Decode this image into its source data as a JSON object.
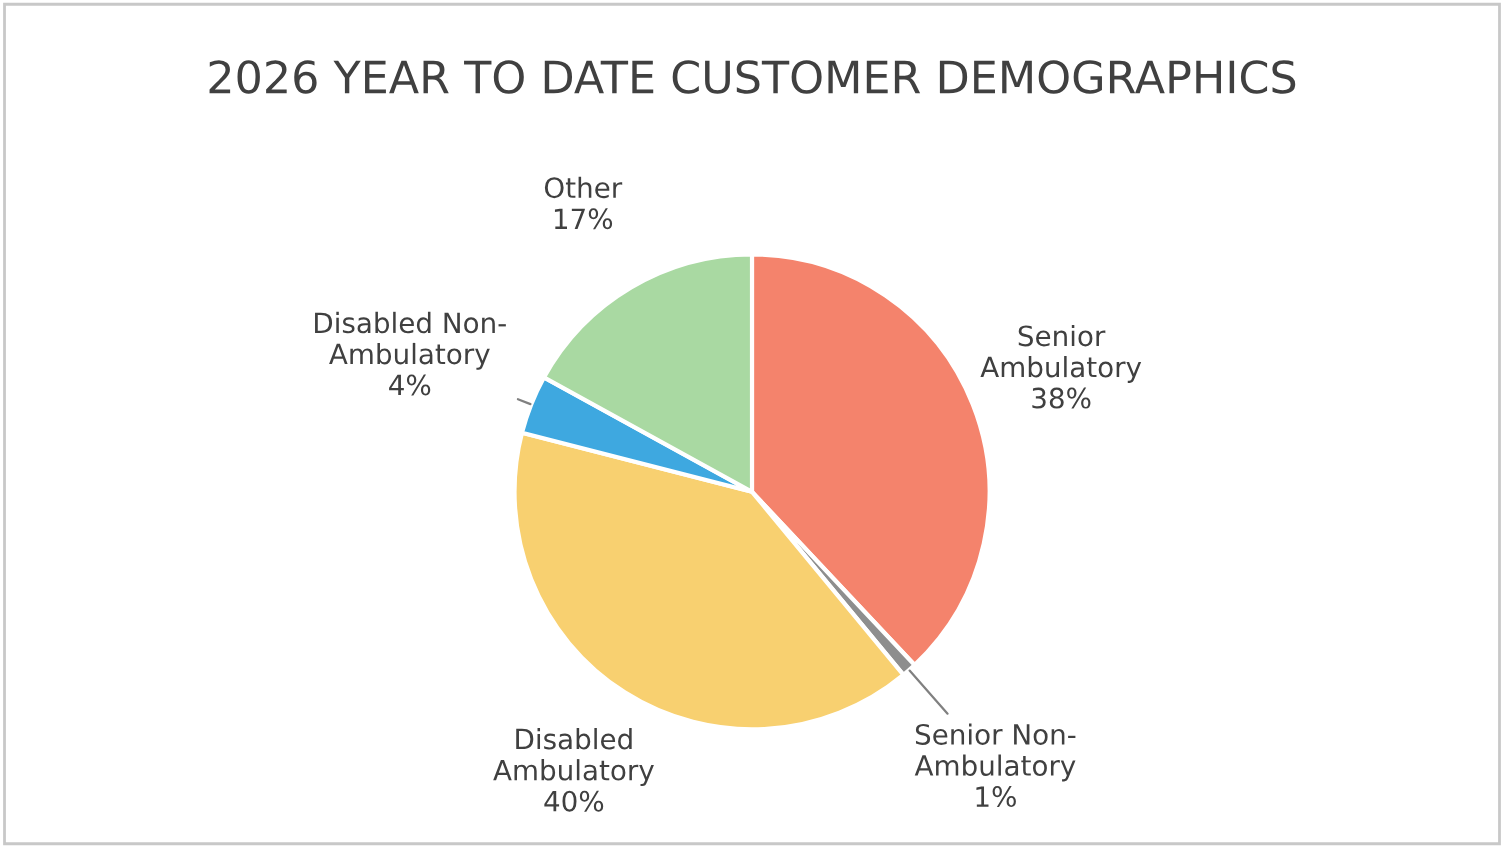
{
  "chart_data": {
    "type": "pie",
    "title": "2026 YEAR TO DATE CUSTOMER DEMOGRAPHICS",
    "categories": [
      "Senior Ambulatory",
      "Senior Non-Ambulatory",
      "Disabled Ambulatory",
      "Disabled Non-Ambulatory",
      "Other"
    ],
    "values": [
      38,
      1,
      40,
      4,
      17
    ],
    "colors": [
      "#f4836c",
      "#8e8e8e",
      "#f8d070",
      "#3ea8e0",
      "#a9d9a2"
    ],
    "value_labels": [
      "38%",
      "1%",
      "40%",
      "4%",
      "17%"
    ],
    "legend": false
  }
}
